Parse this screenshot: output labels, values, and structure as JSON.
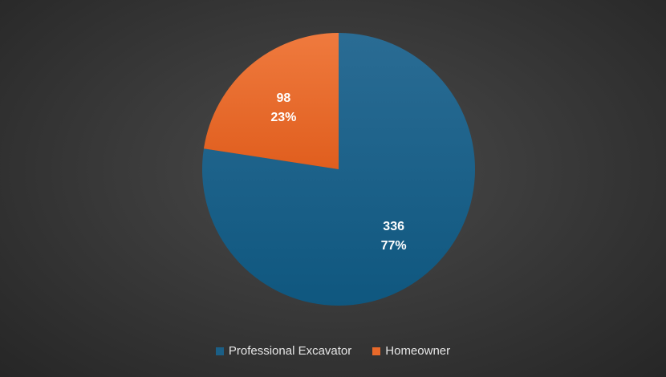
{
  "chart_data": {
    "type": "pie",
    "title": "",
    "categories": [
      "Professional Excavator",
      "Homeowner"
    ],
    "values": [
      336,
      98
    ],
    "percent_labels": [
      "77%",
      "23%"
    ],
    "value_labels": [
      "336",
      "98"
    ],
    "colors": [
      "#1b5f86",
      "#e8692a"
    ],
    "legend_position": "bottom",
    "start_angle_deg": 0
  }
}
